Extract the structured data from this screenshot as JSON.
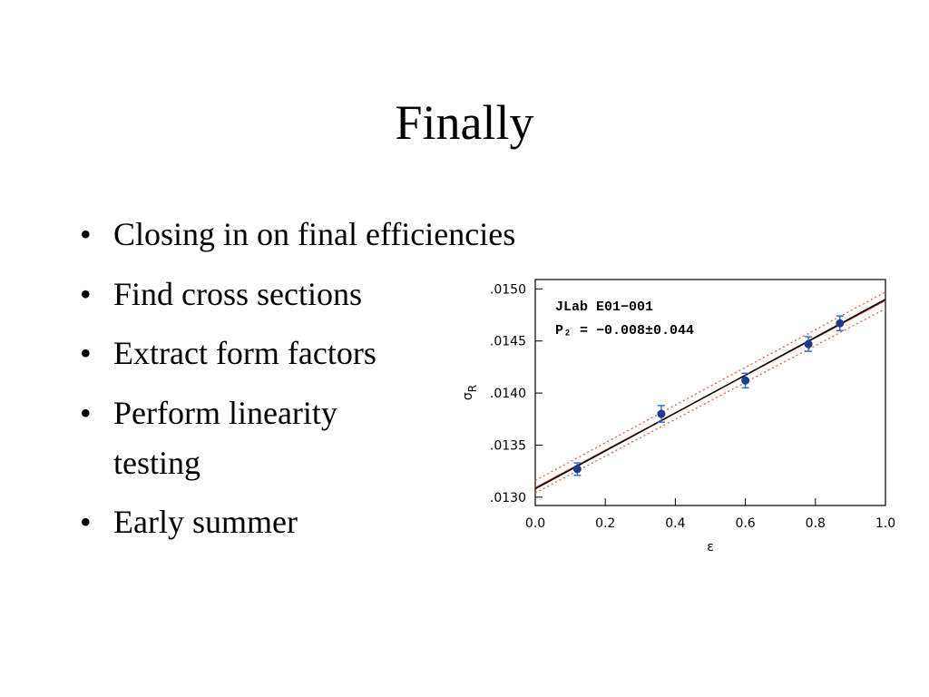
{
  "title": "Finally",
  "bullets": [
    [
      "Closing in on final efficiencies"
    ],
    [
      "Find cross sections"
    ],
    [
      "Extract form factors"
    ],
    [
      "Perform linearity",
      "testing"
    ],
    [
      "Early summer"
    ]
  ],
  "chart_data": {
    "type": "scatter",
    "annotations": [
      "JLab E01−001",
      "P₂ = −0.008±0.044"
    ],
    "xlabel": "ε",
    "ylabel": {
      "symbol": "σ",
      "subscript": "R"
    },
    "xlim": [
      0,
      1.0
    ],
    "xticks": [
      {
        "value": 0,
        "label": "0.0"
      },
      0.2,
      0.4,
      0.6,
      0.8,
      {
        "value": 1,
        "label": "1.0"
      }
    ],
    "ylim": [
      0.01292,
      0.01509
    ],
    "yticks": [
      {
        "value": 0.013,
        "label": ".0130"
      },
      {
        "value": 0.0135,
        "label": ".0135"
      },
      {
        "value": 0.014,
        "label": ".0140"
      },
      {
        "value": 0.0145,
        "label": ".0145"
      },
      {
        "value": 0.015,
        "label": ".0150"
      }
    ],
    "points": {
      "color": "#1f3a8a",
      "error_color": "#3b6fd0",
      "x": [
        0.12,
        0.36,
        0.6,
        0.78,
        0.87
      ],
      "values": [
        0.01327,
        0.0138,
        0.01412,
        0.01447,
        0.01467
      ],
      "errors": [
        6e-05,
        8e-05,
        7e-05,
        7e-05,
        7e-05
      ]
    },
    "lines": [
      {
        "color": "#e06030",
        "dash": true,
        "x": [
          0,
          1
        ],
        "values": [
          0.01316,
          0.01497
        ]
      },
      {
        "color": "#e06030",
        "dash": true,
        "x": [
          0,
          1
        ],
        "values": [
          0.01304,
          0.01481
        ]
      },
      {
        "color": "#c0392b",
        "dash": false,
        "x": [
          0,
          1
        ],
        "values": [
          0.01309,
          0.01489
        ]
      },
      {
        "color": "#000000",
        "dash": false,
        "x": [
          0,
          1
        ],
        "values": [
          0.01308,
          0.0149
        ]
      }
    ]
  }
}
